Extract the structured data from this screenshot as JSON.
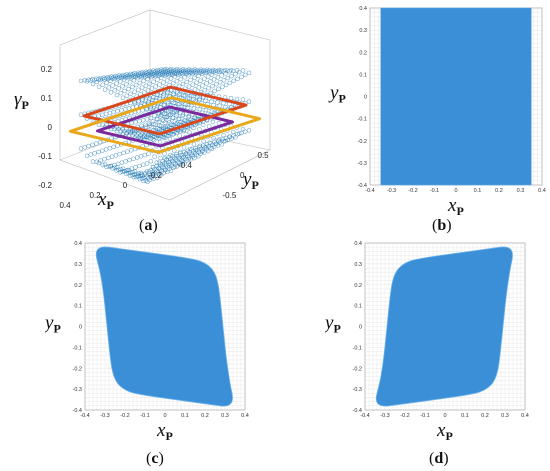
{
  "captions": {
    "a": {
      "open": "(",
      "letter": "a",
      "close": ")"
    },
    "b": {
      "open": "(",
      "letter": "b",
      "close": ")"
    },
    "c": {
      "open": "(",
      "letter": "c",
      "close": ")"
    },
    "d": {
      "open": "(",
      "letter": "d",
      "close": ")"
    }
  },
  "labels": {
    "x_main": "x",
    "y_main": "y",
    "gamma_main": "γ",
    "sub": "P"
  },
  "colors": {
    "points": "#1f77b4",
    "fill": "#3a8fd6",
    "red": "#d9481c",
    "yellow": "#e8a81a",
    "purple": "#7a2a9c",
    "grid": "#d8d8d8"
  },
  "chart_data": [
    {
      "panel": "a",
      "type": "scatter",
      "description_kind": "3d workspace point cloud",
      "x_ticks": [
        "-0.4",
        "-0.2",
        "0",
        "0.2",
        "0.4"
      ],
      "y_ticks": [
        "-0.5",
        "0",
        "0.5"
      ],
      "z_ticks": [
        "-0.2",
        "-0.1",
        "0",
        "0.1",
        "0.2"
      ],
      "xlim": [
        -0.4,
        0.4
      ],
      "ylim": [
        -0.5,
        0.5
      ],
      "zlim": [
        -0.2,
        0.2
      ],
      "xlabel": "xP",
      "ylabel": "yP",
      "zlabel": "γP",
      "grid": true
    },
    {
      "panel": "b",
      "type": "area",
      "x_ticks": [
        "-0.4",
        "-0.3",
        "-0.2",
        "-0.1",
        "0",
        "0.1",
        "0.2",
        "0.3",
        "0.4"
      ],
      "y_ticks": [
        "0.4",
        "0.3",
        "0.2",
        "0.1",
        "0",
        "-0.1",
        "-0.2",
        "-0.3",
        "-0.4"
      ],
      "xlim": [
        -0.4,
        0.4
      ],
      "ylim": [
        -0.4,
        0.4
      ],
      "xlabel": "xP",
      "ylabel": "yP",
      "region": {
        "x": [
          -0.35,
          0.35
        ],
        "y": [
          -0.4,
          0.4
        ]
      },
      "grid": true
    },
    {
      "panel": "c",
      "type": "area",
      "x_ticks": [
        "-0.4",
        "-0.3",
        "-0.2",
        "-0.1",
        "0",
        "0.1",
        "0.2",
        "0.3",
        "0.4"
      ],
      "y_ticks": [
        "0.4",
        "0.3",
        "0.2",
        "0.1",
        "0",
        "-0.1",
        "-0.2",
        "-0.3",
        "-0.4"
      ],
      "xlim": [
        -0.4,
        0.4
      ],
      "ylim": [
        -0.4,
        0.4
      ],
      "xlabel": "xP",
      "ylabel": "yP",
      "boundary": [
        [
          -0.36,
          0.39
        ],
        [
          -0.2,
          0.37
        ],
        [
          -0.05,
          0.35
        ],
        [
          0.1,
          0.33
        ],
        [
          0.2,
          0.31
        ],
        [
          0.26,
          0.25
        ],
        [
          0.28,
          0.1
        ],
        [
          0.3,
          -0.1
        ],
        [
          0.32,
          -0.25
        ],
        [
          0.35,
          -0.39
        ],
        [
          0.2,
          -0.37
        ],
        [
          0.05,
          -0.35
        ],
        [
          -0.1,
          -0.33
        ],
        [
          -0.2,
          -0.31
        ],
        [
          -0.26,
          -0.25
        ],
        [
          -0.28,
          -0.1
        ],
        [
          -0.3,
          0.1
        ],
        [
          -0.32,
          0.25
        ]
      ],
      "grid": true
    },
    {
      "panel": "d",
      "type": "area",
      "x_ticks": [
        "-0.4",
        "-0.3",
        "-0.2",
        "-0.1",
        "0",
        "0.1",
        "0.2",
        "0.3",
        "0.4"
      ],
      "y_ticks": [
        "0.4",
        "0.3",
        "0.2",
        "0.1",
        "0",
        "-0.1",
        "-0.2",
        "-0.3",
        "-0.4"
      ],
      "xlim": [
        -0.4,
        0.4
      ],
      "ylim": [
        -0.4,
        0.4
      ],
      "xlabel": "xP",
      "ylabel": "yP",
      "boundary": [
        [
          0.35,
          0.39
        ],
        [
          0.32,
          0.25
        ],
        [
          0.3,
          0.1
        ],
        [
          0.28,
          -0.1
        ],
        [
          0.26,
          -0.25
        ],
        [
          0.2,
          -0.31
        ],
        [
          0.1,
          -0.33
        ],
        [
          -0.05,
          -0.35
        ],
        [
          -0.2,
          -0.37
        ],
        [
          -0.36,
          -0.39
        ],
        [
          -0.32,
          -0.25
        ],
        [
          -0.3,
          -0.1
        ],
        [
          -0.28,
          0.1
        ],
        [
          -0.26,
          0.25
        ],
        [
          -0.2,
          0.31
        ],
        [
          -0.1,
          0.33
        ],
        [
          0.05,
          0.35
        ],
        [
          0.2,
          0.37
        ]
      ],
      "grid": true
    }
  ]
}
